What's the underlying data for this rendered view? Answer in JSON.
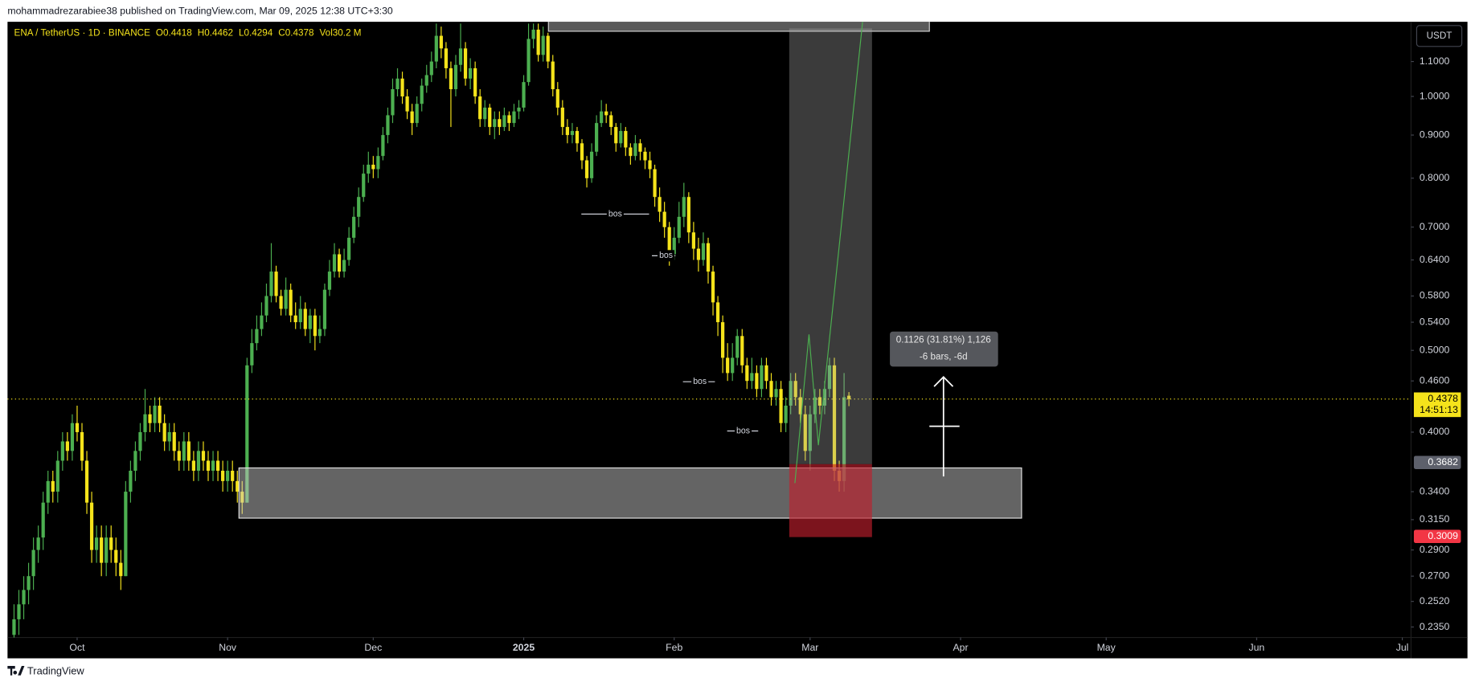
{
  "header": "mohammadrezarabiee38 published on TradingView.com, Mar 09, 2025 12:38 UTC+3:30",
  "footer": "TradingView",
  "chart_data": {
    "type": "candlestick",
    "symbol": "ENA / TetherUS · 1D · BINANCE",
    "ohlc_labels": [
      "O0.4418",
      "H0.4462",
      "L0.4294",
      "C0.4378",
      "Vol30.2 M"
    ],
    "currency": "USDT",
    "up_color": "#4caf50",
    "down_color": "#f5e31b",
    "log_scale": true,
    "grid": false,
    "xlim": [
      -14.34,
      274.8
    ],
    "xticks": [
      {
        "value": 0,
        "label": "Oct"
      },
      {
        "value": 31,
        "label": "Nov"
      },
      {
        "value": 61,
        "label": "Dec"
      },
      {
        "value": 92,
        "label": "2025"
      },
      {
        "value": 123,
        "label": "Feb"
      },
      {
        "value": 151,
        "label": "Mar"
      },
      {
        "value": 182,
        "label": "Apr"
      },
      {
        "value": 212,
        "label": "May"
      },
      {
        "value": 243,
        "label": "Jun"
      },
      {
        "value": 273,
        "label": "Jul"
      }
    ],
    "ylim": [
      0.2163,
      1.226
    ],
    "yticks": [
      {
        "value": 1.1,
        "label": "1.1000"
      },
      {
        "value": 1.0,
        "label": "1.0000"
      },
      {
        "value": 0.9,
        "label": "0.9000"
      },
      {
        "value": 0.8,
        "label": "0.8000"
      },
      {
        "value": 0.7,
        "label": "0.7000"
      },
      {
        "value": 0.64,
        "label": "0.6400"
      },
      {
        "value": 0.58,
        "label": "0.5800"
      },
      {
        "value": 0.54,
        "label": "0.5400"
      },
      {
        "value": 0.5,
        "label": "0.5000"
      },
      {
        "value": 0.46,
        "label": "0.4600"
      },
      {
        "value": 0.4,
        "label": "0.4000"
      },
      {
        "value": 0.34,
        "label": "0.3400"
      },
      {
        "value": 0.315,
        "label": "0.3150"
      },
      {
        "value": 0.29,
        "label": "0.2900"
      },
      {
        "value": 0.27,
        "label": "0.2700"
      },
      {
        "value": 0.252,
        "label": "0.2520"
      },
      {
        "value": 0.235,
        "label": "0.2350"
      }
    ],
    "candles": [
      [
        -13,
        0.23,
        0.25,
        0.22,
        0.24
      ],
      [
        -12,
        0.24,
        0.26,
        0.23,
        0.25
      ],
      [
        -11,
        0.25,
        0.27,
        0.24,
        0.26
      ],
      [
        -10,
        0.26,
        0.28,
        0.25,
        0.27
      ],
      [
        -9,
        0.27,
        0.3,
        0.26,
        0.29
      ],
      [
        -8,
        0.29,
        0.31,
        0.28,
        0.3
      ],
      [
        -7,
        0.3,
        0.34,
        0.29,
        0.33
      ],
      [
        -6,
        0.33,
        0.36,
        0.32,
        0.35
      ],
      [
        -5,
        0.35,
        0.36,
        0.33,
        0.34
      ],
      [
        -4,
        0.34,
        0.38,
        0.33,
        0.37
      ],
      [
        -3,
        0.37,
        0.4,
        0.36,
        0.39
      ],
      [
        -2,
        0.39,
        0.4,
        0.37,
        0.38
      ],
      [
        -1,
        0.38,
        0.42,
        0.37,
        0.41
      ],
      [
        0,
        0.41,
        0.43,
        0.39,
        0.4
      ],
      [
        1,
        0.4,
        0.41,
        0.36,
        0.37
      ],
      [
        2,
        0.37,
        0.38,
        0.32,
        0.33
      ],
      [
        3,
        0.33,
        0.34,
        0.28,
        0.29
      ],
      [
        4,
        0.29,
        0.31,
        0.28,
        0.3
      ],
      [
        5,
        0.3,
        0.31,
        0.27,
        0.28
      ],
      [
        6,
        0.28,
        0.31,
        0.27,
        0.3
      ],
      [
        7,
        0.3,
        0.31,
        0.28,
        0.29
      ],
      [
        8,
        0.29,
        0.3,
        0.27,
        0.28
      ],
      [
        9,
        0.28,
        0.29,
        0.26,
        0.27
      ],
      [
        10,
        0.27,
        0.35,
        0.27,
        0.34
      ],
      [
        11,
        0.34,
        0.37,
        0.33,
        0.36
      ],
      [
        12,
        0.36,
        0.39,
        0.35,
        0.38
      ],
      [
        13,
        0.38,
        0.41,
        0.37,
        0.4
      ],
      [
        14,
        0.4,
        0.45,
        0.39,
        0.42
      ],
      [
        15,
        0.42,
        0.43,
        0.4,
        0.41
      ],
      [
        16,
        0.41,
        0.44,
        0.4,
        0.43
      ],
      [
        17,
        0.43,
        0.44,
        0.4,
        0.41
      ],
      [
        18,
        0.41,
        0.42,
        0.38,
        0.39
      ],
      [
        19,
        0.39,
        0.41,
        0.38,
        0.4
      ],
      [
        20,
        0.4,
        0.41,
        0.37,
        0.38
      ],
      [
        21,
        0.38,
        0.39,
        0.36,
        0.37
      ],
      [
        22,
        0.37,
        0.4,
        0.36,
        0.39
      ],
      [
        23,
        0.39,
        0.4,
        0.36,
        0.37
      ],
      [
        24,
        0.37,
        0.38,
        0.35,
        0.36
      ],
      [
        25,
        0.36,
        0.39,
        0.35,
        0.38
      ],
      [
        26,
        0.38,
        0.39,
        0.36,
        0.37
      ],
      [
        27,
        0.37,
        0.38,
        0.35,
        0.36
      ],
      [
        28,
        0.36,
        0.38,
        0.35,
        0.37
      ],
      [
        29,
        0.37,
        0.38,
        0.35,
        0.36
      ],
      [
        30,
        0.36,
        0.37,
        0.34,
        0.35
      ],
      [
        31,
        0.35,
        0.37,
        0.34,
        0.36
      ],
      [
        32,
        0.36,
        0.37,
        0.34,
        0.35
      ],
      [
        33,
        0.35,
        0.36,
        0.33,
        0.34
      ],
      [
        34,
        0.34,
        0.35,
        0.32,
        0.33
      ],
      [
        35,
        0.33,
        0.49,
        0.33,
        0.48
      ],
      [
        36,
        0.48,
        0.53,
        0.47,
        0.51
      ],
      [
        37,
        0.51,
        0.55,
        0.5,
        0.53
      ],
      [
        38,
        0.53,
        0.57,
        0.52,
        0.55
      ],
      [
        39,
        0.55,
        0.6,
        0.54,
        0.58
      ],
      [
        40,
        0.58,
        0.67,
        0.57,
        0.62
      ],
      [
        41,
        0.62,
        0.63,
        0.57,
        0.58
      ],
      [
        42,
        0.58,
        0.59,
        0.55,
        0.56
      ],
      [
        43,
        0.56,
        0.61,
        0.55,
        0.59
      ],
      [
        44,
        0.59,
        0.6,
        0.54,
        0.55
      ],
      [
        45,
        0.55,
        0.57,
        0.53,
        0.54
      ],
      [
        46,
        0.54,
        0.58,
        0.53,
        0.56
      ],
      [
        47,
        0.56,
        0.57,
        0.52,
        0.53
      ],
      [
        48,
        0.53,
        0.56,
        0.51,
        0.55
      ],
      [
        49,
        0.55,
        0.56,
        0.5,
        0.52
      ],
      [
        50,
        0.52,
        0.55,
        0.51,
        0.53
      ],
      [
        51,
        0.53,
        0.6,
        0.52,
        0.59
      ],
      [
        52,
        0.59,
        0.64,
        0.58,
        0.62
      ],
      [
        53,
        0.62,
        0.67,
        0.61,
        0.65
      ],
      [
        54,
        0.65,
        0.66,
        0.61,
        0.62
      ],
      [
        55,
        0.62,
        0.66,
        0.61,
        0.64
      ],
      [
        56,
        0.64,
        0.7,
        0.63,
        0.68
      ],
      [
        57,
        0.68,
        0.74,
        0.67,
        0.72
      ],
      [
        58,
        0.72,
        0.78,
        0.7,
        0.76
      ],
      [
        59,
        0.76,
        0.83,
        0.75,
        0.81
      ],
      [
        60,
        0.81,
        0.86,
        0.79,
        0.83
      ],
      [
        61,
        0.83,
        0.85,
        0.8,
        0.82
      ],
      [
        62,
        0.82,
        0.87,
        0.8,
        0.85
      ],
      [
        63,
        0.85,
        0.92,
        0.84,
        0.9
      ],
      [
        64,
        0.9,
        0.97,
        0.88,
        0.95
      ],
      [
        65,
        0.95,
        1.05,
        0.93,
        1.02
      ],
      [
        66,
        1.02,
        1.08,
        1.0,
        1.05
      ],
      [
        67,
        1.05,
        1.07,
        0.98,
        1.0
      ],
      [
        68,
        1.0,
        1.02,
        0.94,
        0.96
      ],
      [
        69,
        0.96,
        0.98,
        0.9,
        0.93
      ],
      [
        70,
        0.93,
        1.0,
        0.92,
        0.98
      ],
      [
        71,
        0.98,
        1.05,
        0.96,
        1.03
      ],
      [
        72,
        1.03,
        1.09,
        1.01,
        1.06
      ],
      [
        73,
        1.06,
        1.13,
        1.04,
        1.1
      ],
      [
        74,
        1.1,
        1.22,
        1.08,
        1.18
      ],
      [
        75,
        1.18,
        1.21,
        1.11,
        1.14
      ],
      [
        76,
        1.14,
        1.16,
        1.05,
        1.08
      ],
      [
        77,
        1.08,
        1.1,
        0.92,
        1.02
      ],
      [
        78,
        1.02,
        1.12,
        1.0,
        1.09
      ],
      [
        79,
        1.09,
        1.22,
        1.07,
        1.14
      ],
      [
        80,
        1.14,
        1.16,
        1.03,
        1.05
      ],
      [
        81,
        1.05,
        1.11,
        1.02,
        1.08
      ],
      [
        82,
        1.08,
        1.1,
        0.98,
        1.0
      ],
      [
        83,
        1.0,
        1.02,
        0.92,
        0.94
      ],
      [
        84,
        0.94,
        0.99,
        0.92,
        0.97
      ],
      [
        85,
        0.97,
        0.98,
        0.9,
        0.92
      ],
      [
        86,
        0.92,
        0.96,
        0.89,
        0.94
      ],
      [
        87,
        0.94,
        0.96,
        0.9,
        0.92
      ],
      [
        88,
        0.92,
        0.97,
        0.91,
        0.95
      ],
      [
        89,
        0.95,
        0.96,
        0.91,
        0.93
      ],
      [
        90,
        0.93,
        0.98,
        0.92,
        0.96
      ],
      [
        91,
        0.96,
        0.99,
        0.94,
        0.97
      ],
      [
        92,
        0.97,
        1.06,
        0.96,
        1.04
      ],
      [
        93,
        1.04,
        1.22,
        1.03,
        1.17
      ],
      [
        94,
        1.17,
        1.22,
        1.14,
        1.2
      ],
      [
        95,
        1.2,
        1.22,
        1.1,
        1.12
      ],
      [
        96,
        1.12,
        1.21,
        1.1,
        1.18
      ],
      [
        97,
        1.18,
        1.19,
        1.08,
        1.1
      ],
      [
        98,
        1.1,
        1.12,
        1.0,
        1.02
      ],
      [
        99,
        1.02,
        1.04,
        0.95,
        0.97
      ],
      [
        100,
        0.97,
        0.99,
        0.9,
        0.92
      ],
      [
        101,
        0.92,
        0.94,
        0.88,
        0.9
      ],
      [
        102,
        0.9,
        0.93,
        0.88,
        0.91
      ],
      [
        103,
        0.91,
        0.92,
        0.86,
        0.88
      ],
      [
        104,
        0.88,
        0.89,
        0.82,
        0.84
      ],
      [
        105,
        0.84,
        0.85,
        0.78,
        0.8
      ],
      [
        106,
        0.8,
        0.88,
        0.79,
        0.86
      ],
      [
        107,
        0.86,
        0.95,
        0.85,
        0.93
      ],
      [
        108,
        0.93,
        0.99,
        0.92,
        0.96
      ],
      [
        109,
        0.96,
        0.98,
        0.93,
        0.95
      ],
      [
        110,
        0.95,
        0.96,
        0.9,
        0.92
      ],
      [
        111,
        0.92,
        0.93,
        0.86,
        0.88
      ],
      [
        112,
        0.88,
        0.93,
        0.87,
        0.91
      ],
      [
        113,
        0.91,
        0.92,
        0.85,
        0.87
      ],
      [
        114,
        0.87,
        0.88,
        0.83,
        0.85
      ],
      [
        115,
        0.85,
        0.9,
        0.84,
        0.88
      ],
      [
        116,
        0.88,
        0.89,
        0.84,
        0.86
      ],
      [
        117,
        0.86,
        0.87,
        0.82,
        0.84
      ],
      [
        118,
        0.84,
        0.86,
        0.8,
        0.82
      ],
      [
        119,
        0.82,
        0.83,
        0.74,
        0.76
      ],
      [
        120,
        0.76,
        0.78,
        0.71,
        0.73
      ],
      [
        121,
        0.73,
        0.75,
        0.68,
        0.7
      ],
      [
        122,
        0.7,
        0.71,
        0.63,
        0.65
      ],
      [
        123,
        0.65,
        0.7,
        0.64,
        0.68
      ],
      [
        124,
        0.68,
        0.75,
        0.67,
        0.72
      ],
      [
        125,
        0.72,
        0.79,
        0.7,
        0.76
      ],
      [
        126,
        0.76,
        0.77,
        0.67,
        0.69
      ],
      [
        127,
        0.69,
        0.71,
        0.64,
        0.66
      ],
      [
        128,
        0.66,
        0.68,
        0.62,
        0.64
      ],
      [
        129,
        0.64,
        0.69,
        0.63,
        0.67
      ],
      [
        130,
        0.67,
        0.68,
        0.6,
        0.62
      ],
      [
        131,
        0.62,
        0.63,
        0.55,
        0.57
      ],
      [
        132,
        0.57,
        0.58,
        0.52,
        0.54
      ],
      [
        133,
        0.54,
        0.55,
        0.47,
        0.49
      ],
      [
        134,
        0.49,
        0.51,
        0.46,
        0.47
      ],
      [
        135,
        0.47,
        0.51,
        0.46,
        0.49
      ],
      [
        136,
        0.49,
        0.53,
        0.48,
        0.52
      ],
      [
        137,
        0.52,
        0.53,
        0.47,
        0.48
      ],
      [
        138,
        0.48,
        0.49,
        0.45,
        0.46
      ],
      [
        139,
        0.46,
        0.49,
        0.45,
        0.47
      ],
      [
        140,
        0.47,
        0.48,
        0.44,
        0.45
      ],
      [
        141,
        0.45,
        0.49,
        0.44,
        0.48
      ],
      [
        142,
        0.48,
        0.49,
        0.45,
        0.46
      ],
      [
        143,
        0.46,
        0.47,
        0.43,
        0.44
      ],
      [
        144,
        0.44,
        0.46,
        0.43,
        0.45
      ],
      [
        145,
        0.45,
        0.46,
        0.4,
        0.41
      ],
      [
        146,
        0.41,
        0.44,
        0.4,
        0.43
      ],
      [
        147,
        0.43,
        0.47,
        0.42,
        0.46
      ],
      [
        148,
        0.46,
        0.47,
        0.43,
        0.44
      ],
      [
        149,
        0.44,
        0.45,
        0.41,
        0.42
      ],
      [
        150,
        0.42,
        0.43,
        0.37,
        0.38
      ],
      [
        151,
        0.38,
        0.43,
        0.36,
        0.42
      ],
      [
        152,
        0.42,
        0.45,
        0.41,
        0.44
      ],
      [
        153,
        0.44,
        0.45,
        0.42,
        0.43
      ],
      [
        154,
        0.43,
        0.46,
        0.42,
        0.45
      ],
      [
        155,
        0.45,
        0.49,
        0.44,
        0.48
      ],
      [
        156,
        0.48,
        0.49,
        0.35,
        0.36
      ],
      [
        157,
        0.36,
        0.37,
        0.34,
        0.35
      ],
      [
        158,
        0.35,
        0.47,
        0.34,
        0.44
      ],
      [
        159,
        0.4418,
        0.4462,
        0.4294,
        0.4378
      ]
    ],
    "last_price": {
      "value": 0.4378,
      "countdown": "14:51:13",
      "color": "#f5e31b"
    },
    "price_markers": [
      {
        "value": 0.3682,
        "color": "#5d606b"
      },
      {
        "value": 0.3009,
        "color": "#f23645"
      }
    ],
    "bos_labels": [
      "bos",
      "bos",
      "bos",
      "bos"
    ],
    "measure_labels": [
      "0.1126 (31.81%) 1,126",
      "-6 bars, -6d"
    ]
  }
}
